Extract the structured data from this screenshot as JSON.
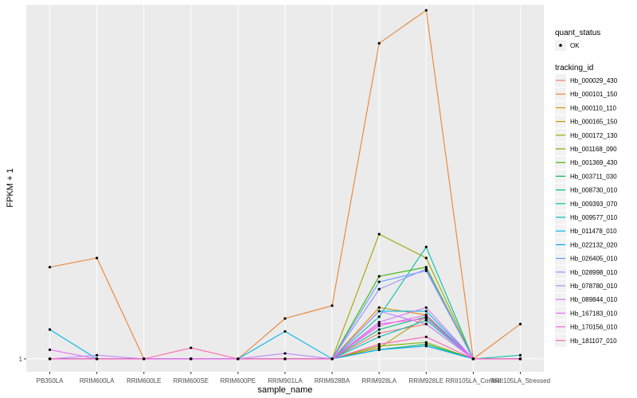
{
  "chart_data": {
    "type": "line",
    "xlabel": "sample_name",
    "ylabel": "FPKM + 1",
    "categories": [
      "PB350LA",
      "RRIM600LA",
      "RRIM600LE",
      "RRIM600SE",
      "RRIM600PE",
      "RRIM901LA",
      "RRIM928BA",
      "RRIM928LA",
      "RRIM928LE",
      "RRII105LA_Control",
      "RRII105LA_Stressed"
    ],
    "y_ticks": [
      {
        "value": 1,
        "label": "1"
      }
    ],
    "ylim": [
      0.3,
      20.3
    ],
    "grid": true,
    "legend_position": "right",
    "legends": {
      "quant_status": {
        "title": "quant_status",
        "entries": [
          "OK"
        ]
      },
      "tracking_id": {
        "title": "tracking_id",
        "entries": [
          "Hb_000029_430",
          "Hb_000101_150",
          "Hb_000110_110",
          "Hb_000165_150",
          "Hb_000172_130",
          "Hb_001168_090",
          "Hb_001369_430",
          "Hb_003711_030",
          "Hb_008730_010",
          "Hb_009393_070",
          "Hb_009577_010",
          "Hb_011478_010",
          "Hb_022132_020",
          "Hb_026405_010",
          "Hb_028998_010",
          "Hb_078780_010",
          "Hb_089844_010",
          "Hb_167183_010",
          "Hb_170156_010",
          "Hb_181107_010"
        ]
      }
    },
    "series": [
      {
        "name": "Hb_000029_430",
        "color": "#F8766D",
        "values": [
          1.0,
          1.0,
          1.0,
          1.0,
          1.0,
          1.0,
          1.0,
          2.4,
          2.9,
          1.0,
          1.0
        ]
      },
      {
        "name": "Hb_000101_150",
        "color": "#EA8331",
        "values": [
          6.0,
          6.5,
          1.0,
          1.0,
          1.0,
          3.2,
          3.9,
          18.2,
          20.0,
          1.0,
          2.9
        ]
      },
      {
        "name": "Hb_000110_110",
        "color": "#D89000",
        "values": [
          1.0,
          1.0,
          1.0,
          1.0,
          1.0,
          1.0,
          1.0,
          3.8,
          3.4,
          1.0,
          1.0
        ]
      },
      {
        "name": "Hb_000165_150",
        "color": "#C09B00",
        "values": [
          1.0,
          1.0,
          1.0,
          1.0,
          1.0,
          1.0,
          1.0,
          1.6,
          3.3,
          1.0,
          1.0
        ]
      },
      {
        "name": "Hb_000172_130",
        "color": "#A3A500",
        "values": [
          1.0,
          1.0,
          1.0,
          1.0,
          1.0,
          1.0,
          1.0,
          7.8,
          6.5,
          1.0,
          1.0
        ]
      },
      {
        "name": "Hb_001168_090",
        "color": "#7CAE00",
        "values": [
          1.0,
          1.0,
          1.0,
          1.0,
          1.0,
          1.0,
          1.0,
          1.7,
          1.9,
          1.0,
          1.0
        ]
      },
      {
        "name": "Hb_001369_430",
        "color": "#39B600",
        "values": [
          1.0,
          1.0,
          1.0,
          1.0,
          1.0,
          1.0,
          1.0,
          5.5,
          6.0,
          1.0,
          1.0
        ]
      },
      {
        "name": "Hb_003711_030",
        "color": "#00BB4E",
        "values": [
          1.0,
          1.0,
          1.0,
          1.0,
          1.0,
          1.0,
          1.0,
          1.5,
          1.8,
          1.0,
          1.0
        ]
      },
      {
        "name": "Hb_008730_010",
        "color": "#00BF7D",
        "values": [
          1.0,
          1.0,
          1.0,
          1.0,
          1.0,
          1.0,
          1.0,
          2.6,
          3.3,
          1.0,
          1.0
        ]
      },
      {
        "name": "Hb_009393_070",
        "color": "#00C1A3",
        "values": [
          1.0,
          1.0,
          1.0,
          1.0,
          1.0,
          1.0,
          1.0,
          3.3,
          7.1,
          1.0,
          1.2
        ]
      },
      {
        "name": "Hb_009577_010",
        "color": "#00BFC4",
        "values": [
          1.0,
          1.0,
          1.0,
          1.0,
          1.0,
          1.0,
          1.0,
          2.2,
          3.1,
          1.0,
          1.0
        ]
      },
      {
        "name": "Hb_011478_010",
        "color": "#00B8E7",
        "values": [
          2.6,
          1.0,
          1.0,
          1.0,
          1.0,
          2.5,
          1.0,
          3.6,
          3.6,
          1.0,
          1.0
        ]
      },
      {
        "name": "Hb_022132_020",
        "color": "#00A9FF",
        "values": [
          1.0,
          1.0,
          1.0,
          1.0,
          1.0,
          1.0,
          1.0,
          1.5,
          1.7,
          1.0,
          1.0
        ]
      },
      {
        "name": "Hb_026405_010",
        "color": "#619CFF",
        "values": [
          1.0,
          1.0,
          1.0,
          1.0,
          1.0,
          1.0,
          1.0,
          5.2,
          5.8,
          1.0,
          1.0
        ]
      },
      {
        "name": "Hb_028998_010",
        "color": "#9590FF",
        "values": [
          1.0,
          1.0,
          1.0,
          1.0,
          1.0,
          1.0,
          1.0,
          4.8,
          5.9,
          1.0,
          1.0
        ]
      },
      {
        "name": "Hb_078780_010",
        "color": "#B983FF",
        "values": [
          1.0,
          1.2,
          1.0,
          1.0,
          1.0,
          1.3,
          1.0,
          3.6,
          2.9,
          1.0,
          1.0
        ]
      },
      {
        "name": "Hb_089844_010",
        "color": "#D376FF",
        "values": [
          1.0,
          1.0,
          1.0,
          1.0,
          1.0,
          1.0,
          1.0,
          3.0,
          3.8,
          1.0,
          1.0
        ]
      },
      {
        "name": "Hb_167183_010",
        "color": "#E76BF3",
        "values": [
          1.5,
          1.0,
          1.0,
          1.0,
          1.0,
          1.0,
          1.0,
          2.8,
          3.4,
          1.0,
          1.0
        ]
      },
      {
        "name": "Hb_170156_010",
        "color": "#F564E3",
        "values": [
          1.0,
          1.0,
          1.0,
          1.0,
          1.0,
          1.0,
          1.0,
          2.9,
          3.2,
          1.0,
          1.0
        ]
      },
      {
        "name": "Hb_181107_010",
        "color": "#FF64B0",
        "values": [
          1.0,
          1.0,
          1.0,
          1.6,
          1.0,
          1.0,
          1.0,
          1.8,
          2.2,
          1.0,
          1.0
        ]
      }
    ]
  }
}
